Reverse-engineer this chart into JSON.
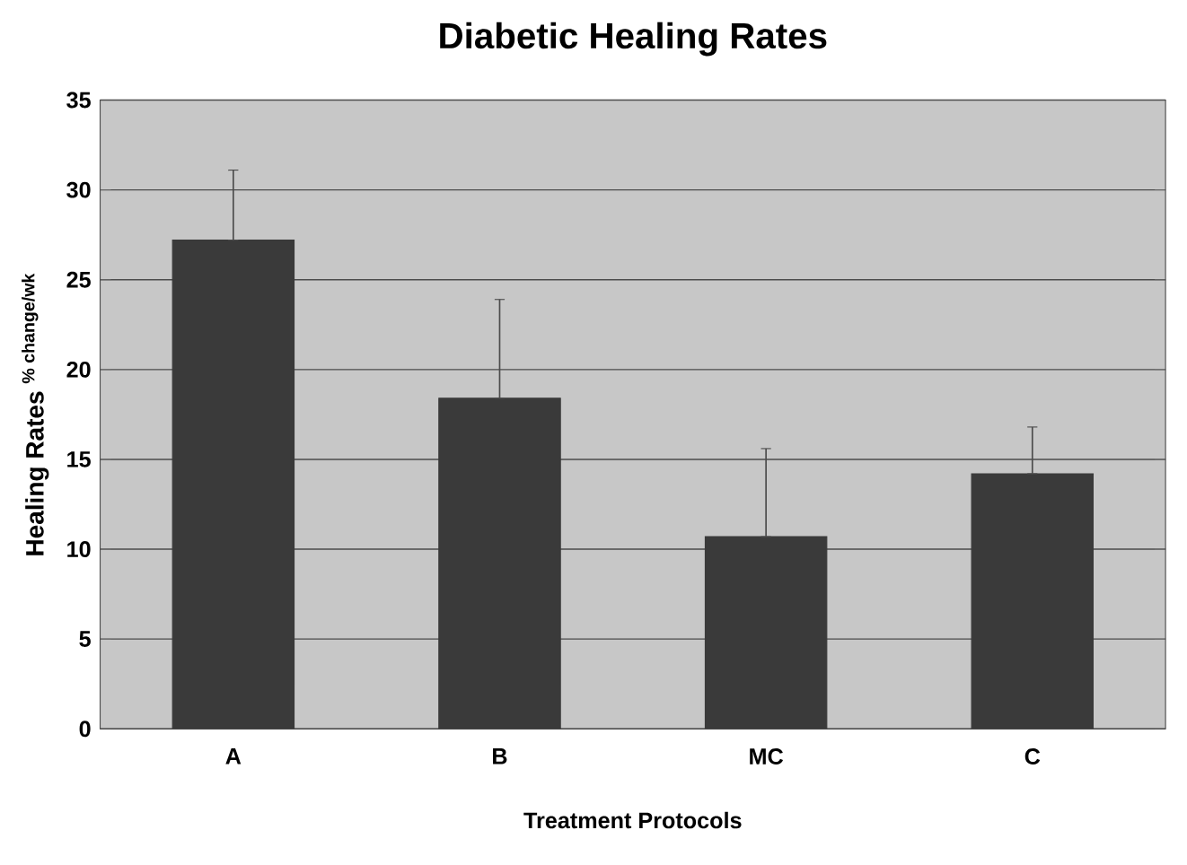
{
  "chart_data": {
    "type": "bar",
    "title": "Diabetic Healing  Rates",
    "xlabel": "Treatment Protocols",
    "ylabel": "Healing Rates $^{% change/wk}$",
    "categories": [
      "A",
      "B",
      "MC",
      "C"
    ],
    "values": [
      27.2,
      18.4,
      10.7,
      14.2
    ],
    "errors": [
      [
        27.2,
        31.1
      ],
      [
        18.4,
        23.9
      ],
      [
        10.7,
        15.6
      ],
      [
        14.2,
        16.8
      ]
    ],
    "color": "#3a3a3a",
    "ylim": [
      0,
      35
    ],
    "yticks": [
      0,
      5,
      10,
      15,
      20,
      25,
      30,
      35
    ],
    "grid": "y"
  }
}
